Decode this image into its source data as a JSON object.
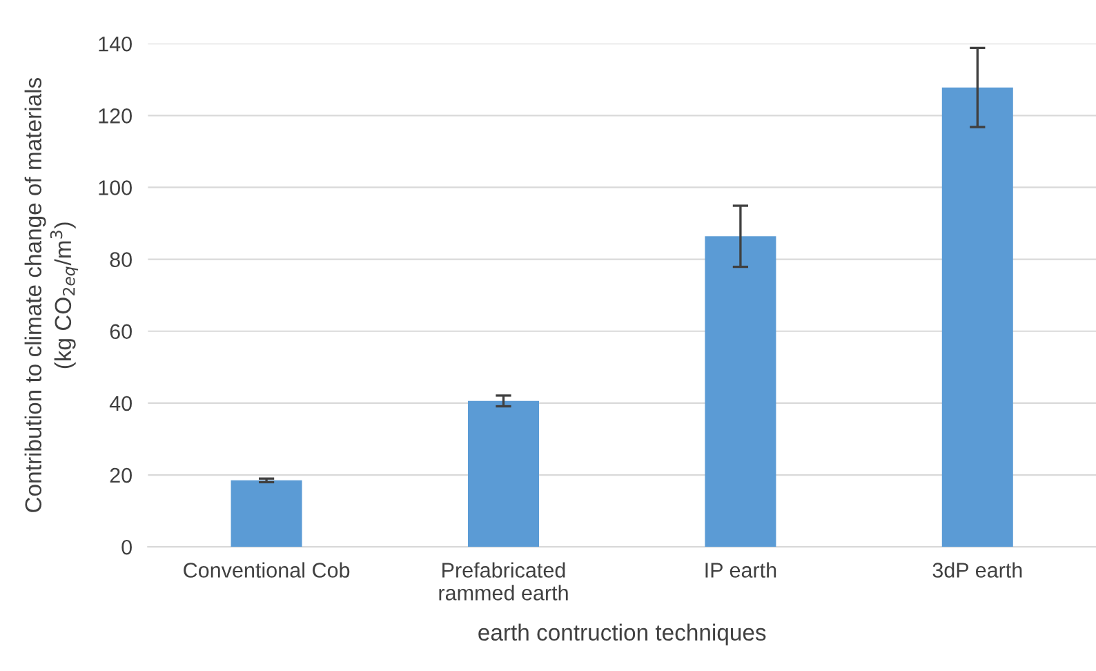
{
  "chart_data": {
    "type": "bar",
    "categories": [
      "Conventional Cob",
      "Prefabricated\nrammed earth",
      "IP earth",
      "3dP earth"
    ],
    "values": [
      18.5,
      40.6,
      86.4,
      127.8
    ],
    "errors": [
      0.5,
      1.5,
      8.5,
      11
    ],
    "color": "#5b9bd5",
    "xlabel": "earth contruction techniques",
    "ylabel": "Contribution to climate change of materials\n(kg CO$_{2eq}$/m$^{3}$)",
    "ylim": [
      0,
      140
    ],
    "yticks": [
      0,
      20,
      40,
      60,
      80,
      100,
      120,
      140
    ],
    "grid": "y",
    "legend": false
  }
}
